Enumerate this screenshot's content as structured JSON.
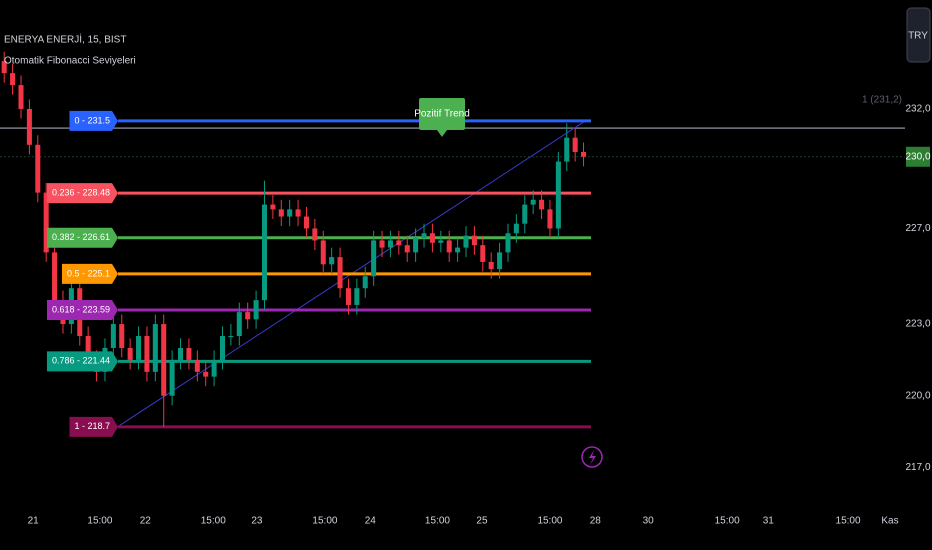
{
  "chart_data": {
    "type": "candlestick",
    "title": "ENERYA ENERJİ, 15, BIST",
    "indicator": "Otomatik Fibonacci Seviyeleri",
    "currency": "TRY",
    "annotation": "Pozitif Trend",
    "up_color": "#089981",
    "down_color": "#f23645",
    "xlim": [
      -0.5,
      110.5
    ],
    "xticks": [
      {
        "value": 3.45,
        "label": "21"
      },
      {
        "value": 11.4,
        "label": "15:00"
      },
      {
        "value": 16.8,
        "label": "22"
      },
      {
        "value": 24.9,
        "label": "15:00"
      },
      {
        "value": 30.1,
        "label": "23"
      },
      {
        "value": 38.2,
        "label": "15:00"
      },
      {
        "value": 43.6,
        "label": "24"
      },
      {
        "value": 51.6,
        "label": "15:00"
      },
      {
        "value": 56.9,
        "label": "25"
      },
      {
        "value": 65,
        "label": "15:00"
      },
      {
        "value": 70.4,
        "label": "28"
      },
      {
        "value": 76.7,
        "label": "30"
      },
      {
        "value": 86.1,
        "label": "15:00"
      },
      {
        "value": 91,
        "label": "31"
      },
      {
        "value": 100.5,
        "label": "15:00"
      },
      {
        "value": 105.5,
        "label": "Kas"
      }
    ],
    "ylim": [
      215.22,
      236.56
    ],
    "yticks": [
      {
        "value": 232,
        "label": "232,0"
      },
      {
        "value": 227,
        "label": "227,0"
      },
      {
        "value": 223,
        "label": "223,0"
      },
      {
        "value": 220,
        "label": "220,0"
      },
      {
        "value": 217,
        "label": "217,0"
      }
    ],
    "last_price": {
      "value": 230,
      "label": "230,0"
    },
    "ref_line": {
      "value": 231.2,
      "label": "1 (231,2)"
    },
    "fib_levels": [
      {
        "label": "0 - 231.5",
        "value": 231.5,
        "color": "#2962ff"
      },
      {
        "label": "0.236 - 228.48",
        "value": 228.48,
        "color": "#f7525f"
      },
      {
        "label": "0.382 - 226.61",
        "value": 226.61,
        "color": "#4caf50"
      },
      {
        "label": "0.5 - 225.1",
        "value": 225.1,
        "color": "#ff9800"
      },
      {
        "label": "0.618 - 223.59",
        "value": 223.59,
        "color": "#9c27b0"
      },
      {
        "label": "0.786 - 221.44",
        "value": 221.44,
        "color": "#089981"
      },
      {
        "label": "1 - 218.7",
        "value": 218.7,
        "color": "#880e4f"
      }
    ],
    "ohlc": [
      [
        234,
        234.4,
        233.1,
        233.5
      ],
      [
        233.5,
        233.9,
        232.6,
        233
      ],
      [
        233,
        233.4,
        231.6,
        232
      ],
      [
        232,
        232.4,
        230.1,
        230.5
      ],
      [
        230.5,
        230.9,
        228.1,
        228.5
      ],
      [
        228.5,
        228.9,
        225.6,
        226
      ],
      [
        226,
        226.4,
        223.6,
        224
      ],
      [
        224,
        224.4,
        222.6,
        223
      ],
      [
        223,
        224.9,
        222.6,
        224.5
      ],
      [
        224.5,
        224.9,
        222.1,
        222.5
      ],
      [
        222.5,
        222.9,
        221.1,
        221.5
      ],
      [
        221.5,
        221.9,
        220.6,
        221
      ],
      [
        221,
        222.4,
        220.6,
        222
      ],
      [
        222,
        223.4,
        221.6,
        223
      ],
      [
        223,
        223.4,
        221.6,
        222
      ],
      [
        222,
        222.4,
        221.1,
        221.5
      ],
      [
        221.5,
        222.9,
        221.1,
        222.5
      ],
      [
        222.5,
        222.9,
        220.6,
        221
      ],
      [
        221,
        223.4,
        220.6,
        223
      ],
      [
        223,
        223.4,
        218.7,
        220
      ],
      [
        220,
        221.9,
        219.6,
        221.5
      ],
      [
        221.5,
        222.4,
        221.1,
        222
      ],
      [
        222,
        222.4,
        221.1,
        221.5
      ],
      [
        221.5,
        221.9,
        220.6,
        221
      ],
      [
        221,
        221.4,
        220.4,
        220.8
      ],
      [
        220.8,
        221.9,
        220.4,
        221.5
      ],
      [
        221.5,
        222.9,
        221.1,
        222.5
      ],
      [
        222.5,
        223,
        222.1,
        222.5
      ],
      [
        222.5,
        223.9,
        222.1,
        223.5
      ],
      [
        223.5,
        223.9,
        222.8,
        223.2
      ],
      [
        223.2,
        224.4,
        222.8,
        224
      ],
      [
        224,
        229,
        223.6,
        228
      ],
      [
        228,
        228.4,
        227.4,
        227.8
      ],
      [
        227.8,
        228.2,
        227.1,
        227.5
      ],
      [
        227.5,
        228.2,
        227.1,
        227.8
      ],
      [
        227.8,
        228.2,
        227.1,
        227.5
      ],
      [
        227.5,
        227.9,
        226.6,
        227
      ],
      [
        227,
        227.4,
        226.1,
        226.5
      ],
      [
        226.5,
        226.9,
        225.1,
        225.5
      ],
      [
        225.5,
        226.2,
        225.1,
        225.8
      ],
      [
        225.8,
        226.2,
        224.1,
        224.5
      ],
      [
        224.5,
        224.9,
        223.4,
        223.8
      ],
      [
        223.8,
        224.9,
        223.4,
        224.5
      ],
      [
        224.5,
        225.4,
        224.1,
        225
      ],
      [
        225,
        226.9,
        224.6,
        226.5
      ],
      [
        226.5,
        226.9,
        225.8,
        226.2
      ],
      [
        226.2,
        226.9,
        225.8,
        226.5
      ],
      [
        226.5,
        226.9,
        225.9,
        226.3
      ],
      [
        226.3,
        226.7,
        225.6,
        226
      ],
      [
        226,
        227,
        225.6,
        226.6
      ],
      [
        226.6,
        227.2,
        226.2,
        226.8
      ],
      [
        226.8,
        227.2,
        226,
        226.4
      ],
      [
        226.4,
        226.9,
        226,
        226.5
      ],
      [
        226.5,
        226.9,
        225.6,
        226
      ],
      [
        226,
        226.6,
        225.6,
        226.2
      ],
      [
        226.2,
        227.1,
        225.8,
        226.7
      ],
      [
        226.7,
        227.1,
        225.9,
        226.3
      ],
      [
        226.3,
        226.7,
        225.2,
        225.6
      ],
      [
        225.6,
        226,
        224.9,
        225.3
      ],
      [
        225.3,
        226.4,
        224.9,
        226
      ],
      [
        226,
        227.2,
        225.6,
        226.8
      ],
      [
        226.8,
        227.6,
        226.4,
        227.2
      ],
      [
        227.2,
        228.4,
        226.8,
        228
      ],
      [
        228,
        228.6,
        227.6,
        228.2
      ],
      [
        228.2,
        228.6,
        227.4,
        227.8
      ],
      [
        227.8,
        228.2,
        226.6,
        227
      ],
      [
        227,
        230.2,
        226.6,
        229.8
      ],
      [
        229.8,
        231.4,
        229.4,
        230.8
      ],
      [
        230.8,
        231.2,
        229.8,
        230.2
      ],
      [
        230.2,
        230.6,
        229.6,
        230
      ]
    ]
  }
}
